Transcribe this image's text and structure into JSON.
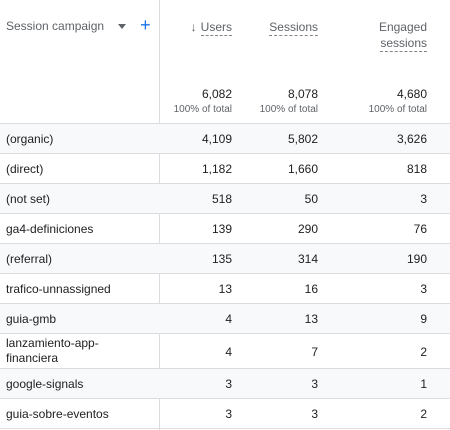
{
  "header": {
    "dimension_label": "Session campaign",
    "metrics": [
      {
        "label_line1": "Users",
        "label_line2": ""
      },
      {
        "label_line1": "Sessions",
        "label_line2": ""
      },
      {
        "label_line1": "Engaged",
        "label_line2": "sessions"
      }
    ],
    "totals": [
      {
        "value": "6,082",
        "pct": "100% of total"
      },
      {
        "value": "8,078",
        "pct": "100% of total"
      },
      {
        "value": "4,680",
        "pct": "100% of total"
      }
    ]
  },
  "rows": [
    {
      "campaign": "(organic)",
      "users": "4,109",
      "sessions": "5,802",
      "engaged": "3,626"
    },
    {
      "campaign": "(direct)",
      "users": "1,182",
      "sessions": "1,660",
      "engaged": "818"
    },
    {
      "campaign": "(not set)",
      "users": "518",
      "sessions": "50",
      "engaged": "3"
    },
    {
      "campaign": "ga4-definiciones",
      "users": "139",
      "sessions": "290",
      "engaged": "76"
    },
    {
      "campaign": "(referral)",
      "users": "135",
      "sessions": "314",
      "engaged": "190"
    },
    {
      "campaign": "trafico-unnassigned",
      "users": "13",
      "sessions": "16",
      "engaged": "3"
    },
    {
      "campaign": "guia-gmb",
      "users": "4",
      "sessions": "13",
      "engaged": "9"
    },
    {
      "campaign": "lanzamiento-app-financiera",
      "campaign_line1": "lanzamiento-app-",
      "campaign_line2": "financiera",
      "users": "4",
      "sessions": "7",
      "engaged": "2"
    },
    {
      "campaign": "google-signals",
      "users": "3",
      "sessions": "3",
      "engaged": "1"
    },
    {
      "campaign": "guia-sobre-eventos",
      "users": "3",
      "sessions": "3",
      "engaged": "2"
    }
  ],
  "colors": {
    "accent": "#1a73e8",
    "grid": "#dadce0",
    "stripe": "#f8f9fa"
  },
  "icons": [
    "dropdown-arrow-icon",
    "add-icon",
    "sort-down-arrow-icon"
  ]
}
